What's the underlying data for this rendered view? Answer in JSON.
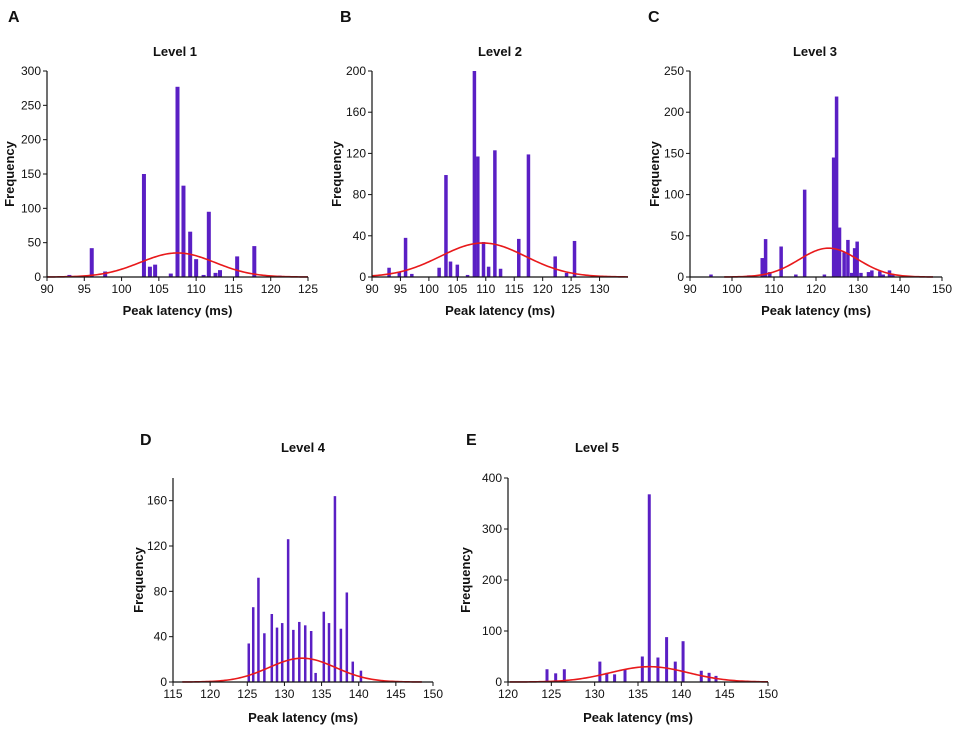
{
  "figure": {
    "bar_color": "#5a1fc4",
    "fit_color": "#e8191b"
  },
  "chart_data": [
    {
      "panel": "A",
      "type": "bar",
      "title": "Level 1",
      "xlabel": "Peak latency (ms)",
      "ylabel": "Frequency",
      "xlim": [
        90,
        125
      ],
      "ylim": [
        0,
        300
      ],
      "xticks": [
        90,
        95,
        100,
        105,
        110,
        115,
        120,
        125
      ],
      "yticks": [
        0,
        50,
        100,
        150,
        200,
        250,
        300
      ],
      "bars": [
        [
          93,
          3
        ],
        [
          96,
          42
        ],
        [
          97.8,
          8
        ],
        [
          103,
          150
        ],
        [
          103.8,
          15
        ],
        [
          104.5,
          18
        ],
        [
          106.6,
          5
        ],
        [
          107.5,
          277
        ],
        [
          108.3,
          133
        ],
        [
          109.2,
          66
        ],
        [
          110,
          26
        ],
        [
          111,
          3
        ],
        [
          111.7,
          95
        ],
        [
          112.6,
          6
        ],
        [
          113.2,
          10
        ],
        [
          115.5,
          30
        ],
        [
          117.8,
          45
        ],
        [
          121.2,
          2
        ]
      ],
      "fit": {
        "mu": 107.5,
        "sigma": 5,
        "peak": 35
      }
    },
    {
      "panel": "B",
      "type": "bar",
      "title": "Level 2",
      "xlabel": "Peak latency (ms)",
      "ylabel": "Frequency",
      "xlim": [
        90,
        135
      ],
      "ylim": [
        0,
        200
      ],
      "xticks": [
        90,
        95,
        100,
        105,
        110,
        115,
        120,
        125,
        130
      ],
      "yticks": [
        0,
        40,
        80,
        120,
        160,
        200
      ],
      "bars": [
        [
          93,
          9
        ],
        [
          94.8,
          5
        ],
        [
          95.9,
          38
        ],
        [
          97,
          3
        ],
        [
          101.8,
          9
        ],
        [
          103,
          99
        ],
        [
          103.8,
          15
        ],
        [
          105,
          12
        ],
        [
          106.8,
          2
        ],
        [
          108,
          200
        ],
        [
          108.6,
          117
        ],
        [
          109.6,
          34
        ],
        [
          110.5,
          10
        ],
        [
          111.6,
          123
        ],
        [
          112.6,
          8
        ],
        [
          115.8,
          37
        ],
        [
          117.5,
          119
        ],
        [
          122.2,
          20
        ],
        [
          124.2,
          4
        ],
        [
          125.6,
          35
        ]
      ],
      "fit": {
        "mu": 109.5,
        "sigma": 7.5,
        "peak": 33
      }
    },
    {
      "panel": "C",
      "type": "bar",
      "title": "Level 3",
      "xlabel": "Peak latency (ms)",
      "ylabel": "Frequency",
      "xlim": [
        90,
        150
      ],
      "ylim": [
        0,
        250
      ],
      "xticks": [
        90,
        100,
        110,
        120,
        130,
        140,
        150
      ],
      "yticks": [
        0,
        50,
        100,
        150,
        200,
        250
      ],
      "bars": [
        [
          95,
          3
        ],
        [
          104,
          2
        ],
        [
          107.2,
          23
        ],
        [
          108,
          46
        ],
        [
          109,
          6
        ],
        [
          111.7,
          37
        ],
        [
          115.2,
          3
        ],
        [
          117.3,
          106
        ],
        [
          122,
          3
        ],
        [
          124.2,
          145
        ],
        [
          124.9,
          219
        ],
        [
          125.6,
          60
        ],
        [
          126.7,
          30
        ],
        [
          127.6,
          45
        ],
        [
          128.5,
          5
        ],
        [
          129.2,
          35
        ],
        [
          129.8,
          43
        ],
        [
          130.7,
          5
        ],
        [
          132.5,
          6
        ],
        [
          133.3,
          8
        ],
        [
          135.2,
          7
        ],
        [
          136,
          3
        ],
        [
          137.5,
          8
        ],
        [
          138.3,
          3
        ]
      ],
      "fit": {
        "mu": 123,
        "sigma": 7,
        "peak": 35
      }
    },
    {
      "panel": "D",
      "type": "bar",
      "title": "Level 4",
      "xlabel": "Peak latency (ms)",
      "ylabel": "Frequency",
      "xlim": [
        115,
        150
      ],
      "ylim": [
        0,
        180
      ],
      "xticks": [
        115,
        120,
        125,
        130,
        135,
        140,
        145,
        150
      ],
      "yticks": [
        0,
        40,
        80,
        120,
        160
      ],
      "bars": [
        [
          125.2,
          34
        ],
        [
          125.8,
          66
        ],
        [
          126.5,
          92
        ],
        [
          127.3,
          43
        ],
        [
          128.3,
          60
        ],
        [
          129,
          48
        ],
        [
          129.7,
          52
        ],
        [
          130.5,
          126
        ],
        [
          131.2,
          46
        ],
        [
          132,
          53
        ],
        [
          132.8,
          50
        ],
        [
          133.6,
          45
        ],
        [
          134.2,
          8
        ],
        [
          135.3,
          62
        ],
        [
          136,
          52
        ],
        [
          136.8,
          164
        ],
        [
          137.6,
          47
        ],
        [
          138.4,
          79
        ],
        [
          139.2,
          18
        ],
        [
          140.3,
          10
        ]
      ],
      "fit": {
        "mu": 132.4,
        "sigma": 4.5,
        "peak": 21
      }
    },
    {
      "panel": "E",
      "type": "bar",
      "title": "Level 5",
      "xlabel": "Peak latency (ms)",
      "ylabel": "Frequency",
      "xlim": [
        120,
        150
      ],
      "ylim": [
        0,
        400
      ],
      "xticks": [
        120,
        125,
        130,
        135,
        140,
        145,
        150
      ],
      "yticks": [
        0,
        100,
        200,
        300,
        400
      ],
      "bars": [
        [
          124.5,
          25
        ],
        [
          125.5,
          17
        ],
        [
          126.5,
          25
        ],
        [
          130.6,
          40
        ],
        [
          131.4,
          18
        ],
        [
          132.3,
          15
        ],
        [
          133.5,
          25
        ],
        [
          135.5,
          50
        ],
        [
          136.3,
          368
        ],
        [
          137.3,
          48
        ],
        [
          138.3,
          88
        ],
        [
          139.3,
          40
        ],
        [
          140.2,
          80
        ],
        [
          142.3,
          22
        ],
        [
          143.2,
          18
        ],
        [
          144,
          12
        ]
      ],
      "fit": {
        "mu": 136.3,
        "sigma": 4.5,
        "peak": 30
      }
    }
  ]
}
